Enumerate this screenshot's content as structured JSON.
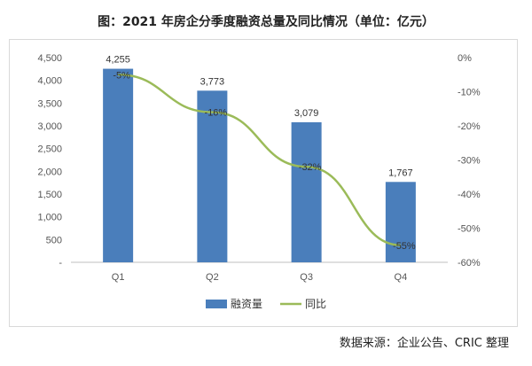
{
  "chart_data": {
    "type": "bar",
    "title": "图：2021 年房企分季度融资总量及同比情况（单位：亿元）",
    "categories": [
      "Q1",
      "Q2",
      "Q3",
      "Q4"
    ],
    "series": [
      {
        "name": "融资量",
        "type": "bar",
        "axis": "left",
        "values": [
          4255,
          3773,
          3079,
          1767
        ],
        "labels": [
          "4,255",
          "3,773",
          "3,079",
          "1,767"
        ],
        "color": "#4a7ebb"
      },
      {
        "name": "同比",
        "type": "line",
        "axis": "right",
        "values": [
          -5,
          -16,
          -32,
          -55
        ],
        "labels": [
          "-5%",
          "-16%",
          "-32%",
          "-55%"
        ],
        "color": "#9bbb59"
      }
    ],
    "y_left": {
      "min": 0,
      "max": 4500,
      "ticks": [
        {
          "v": 0,
          "label": "-"
        },
        {
          "v": 500,
          "label": "500"
        },
        {
          "v": 1000,
          "label": "1,000"
        },
        {
          "v": 1500,
          "label": "1,500"
        },
        {
          "v": 2000,
          "label": "2,000"
        },
        {
          "v": 2500,
          "label": "2,500"
        },
        {
          "v": 3000,
          "label": "3,000"
        },
        {
          "v": 3500,
          "label": "3,500"
        },
        {
          "v": 4000,
          "label": "4,000"
        },
        {
          "v": 4500,
          "label": "4,500"
        }
      ]
    },
    "y_right": {
      "min": -60,
      "max": 0,
      "ticks": [
        {
          "v": 0,
          "label": "0%"
        },
        {
          "v": -10,
          "label": "-10%"
        },
        {
          "v": -20,
          "label": "-20%"
        },
        {
          "v": -30,
          "label": "-30%"
        },
        {
          "v": -40,
          "label": "-40%"
        },
        {
          "v": -50,
          "label": "-50%"
        },
        {
          "v": -60,
          "label": "-60%"
        }
      ]
    },
    "legend": {
      "position": "bottom",
      "items": [
        "融资量",
        "同比"
      ]
    },
    "grid": false
  },
  "source": "数据来源：企业公告、CRIC 整理"
}
